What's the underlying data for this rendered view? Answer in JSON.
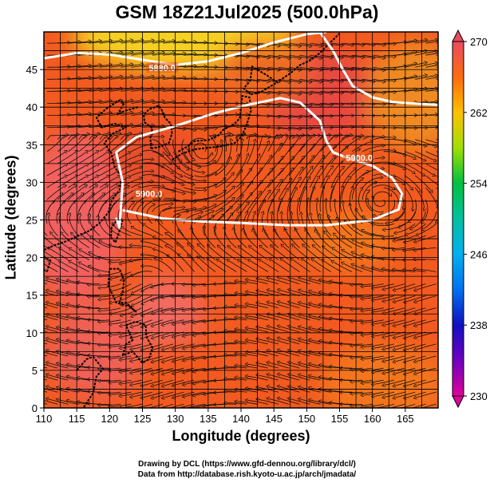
{
  "title": "GSM 18Z21Jul2025 (500.0hPa)",
  "axes": {
    "xlabel": "Longitude (degrees)",
    "ylabel": "Latitude  (degrees)",
    "x_ticks": [
      "110",
      "115",
      "120",
      "125",
      "130",
      "135",
      "140",
      "145",
      "150",
      "155",
      "160",
      "165"
    ],
    "y_ticks": [
      "0",
      "5",
      "10",
      "15",
      "20",
      "25",
      "30",
      "35",
      "40",
      "45"
    ],
    "x_range": [
      110,
      170
    ],
    "y_range": [
      0,
      50
    ]
  },
  "colorbar": {
    "tick_labels": [
      "270",
      "262",
      "254",
      "246",
      "238",
      "230"
    ],
    "range": [
      230,
      270
    ],
    "colors": [
      "#e0009a",
      "#1010c0",
      "#0080ff",
      "#00d0d0",
      "#00c040",
      "#a0e000",
      "#ffe000",
      "#ff9000",
      "#f04010",
      "#e84a5f"
    ]
  },
  "contours": [
    {
      "label": "5880.0",
      "points": [
        [
          110,
          46.5
        ],
        [
          115,
          47.2
        ],
        [
          120,
          47.0
        ],
        [
          125,
          46.3
        ],
        [
          130,
          45.6
        ],
        [
          135,
          46.1
        ],
        [
          140,
          47.2
        ],
        [
          145,
          48.6
        ],
        [
          150,
          49.7
        ],
        [
          153,
          50
        ]
      ]
    },
    {
      "label": "5900.0",
      "points": [
        [
          121,
          25.3
        ],
        [
          121.5,
          24
        ],
        [
          122,
          30
        ],
        [
          121,
          34
        ],
        [
          124,
          36
        ],
        [
          130,
          37.5
        ],
        [
          136,
          39.2
        ],
        [
          141,
          40.3
        ],
        [
          146,
          41.2
        ],
        [
          149,
          40.6
        ],
        [
          152,
          38.2
        ],
        [
          153,
          35.5
        ],
        [
          154,
          34
        ],
        [
          156,
          33.3
        ],
        [
          160,
          32.2
        ],
        [
          163,
          30.6
        ],
        [
          164.5,
          28.5
        ],
        [
          164,
          26.4
        ],
        [
          160,
          25
        ],
        [
          153,
          24.3
        ],
        [
          147,
          24.3
        ],
        [
          140,
          24.6
        ],
        [
          134,
          24.8
        ],
        [
          128,
          25.2
        ],
        [
          122,
          26.3
        ]
      ]
    },
    {
      "label": "5900.0",
      "points": [
        [
          152,
          50
        ],
        [
          154,
          47.5
        ],
        [
          155.5,
          45
        ],
        [
          157,
          42.8
        ],
        [
          160,
          41.3
        ],
        [
          163,
          40.7
        ],
        [
          166,
          40.5
        ],
        [
          170,
          40.3
        ]
      ]
    }
  ],
  "contour_labels": [
    {
      "text": "5880.0",
      "lon": 128,
      "lat": 45.2
    },
    {
      "text": "5900.0",
      "lon": 126,
      "lat": 28.5
    },
    {
      "text": "5900.0",
      "lon": 158,
      "lat": 33.3
    }
  ],
  "credits": {
    "line1": "Drawing by DCL (https://www.gfd-dennou.org/library/dcl/)",
    "line2": "Data from http://database.rish.kyoto-u.ac.jp/arch/jmadata/"
  }
}
